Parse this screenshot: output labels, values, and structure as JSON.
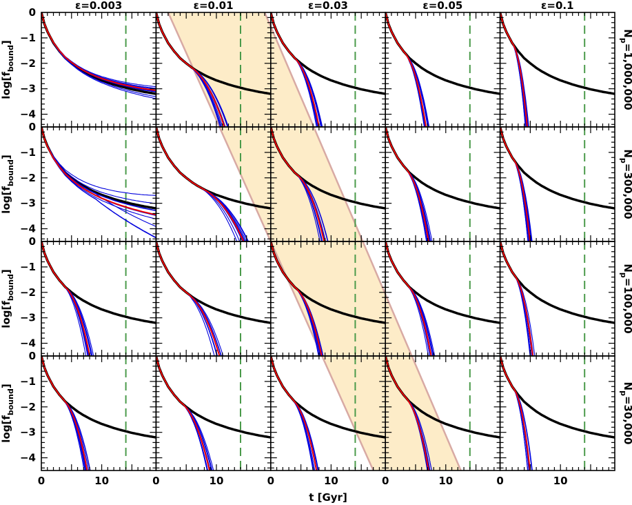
{
  "chart_data": {
    "type": "line",
    "description_layout": "4x5 panel grid",
    "xlabel": "t [Gyr]",
    "ylabel": "log[f_bound]",
    "ylabel_main": "log[f",
    "ylabel_sub": "bound",
    "ylabel_close": "]",
    "xlim": [
      0,
      19
    ],
    "ylim": [
      -4.5,
      0
    ],
    "x_ticks": [
      0,
      10
    ],
    "y_ticks": [
      0,
      -1,
      -2,
      -3,
      -4
    ],
    "vline_x": 14,
    "columns": [
      {
        "label": "ε=0.003",
        "eps": 0.003
      },
      {
        "label": "ε=0.01",
        "eps": 0.01
      },
      {
        "label": "ε=0.03",
        "eps": 0.03
      },
      {
        "label": "ε=0.05",
        "eps": 0.05
      },
      {
        "label": "ε=0.1",
        "eps": 0.1
      }
    ],
    "rows": [
      {
        "label_main": "N",
        "label_sub": "p",
        "label_value": "=1,000,000"
      },
      {
        "label_main": "N",
        "label_sub": "p",
        "label_value": "=300,000"
      },
      {
        "label_main": "N",
        "label_sub": "p",
        "label_value": "=100,000"
      },
      {
        "label_main": "N",
        "label_sub": "p",
        "label_value": "=30,000"
      }
    ],
    "colors": {
      "reference": "#000000",
      "runs": "#0000dd",
      "median": "#ee0000",
      "band_fill": "#fdecc8",
      "band_edge": "#d8aaa4",
      "vline": "#4a9a4a"
    },
    "reference_curve": {
      "t": [
        0,
        0.5,
        1,
        2,
        3,
        4,
        5,
        6,
        7,
        8,
        9,
        10,
        11,
        12,
        13,
        14,
        15,
        16,
        17,
        18,
        19
      ],
      "log_f": [
        0,
        -0.45,
        -0.75,
        -1.2,
        -1.53,
        -1.8,
        -2.0,
        -2.18,
        -2.33,
        -2.46,
        -2.57,
        -2.67,
        -2.75,
        -2.83,
        -2.9,
        -2.96,
        -3.02,
        -3.07,
        -3.12,
        -3.16,
        -3.2
      ]
    },
    "disruption_times": [
      [
        null,
        12.5,
        8.5,
        7.0,
        4.5
      ],
      [
        null,
        16.5,
        9.5,
        7.5,
        5.0
      ],
      [
        8.5,
        11.5,
        9.0,
        8.0,
        5.5
      ],
      [
        8.0,
        9.5,
        8.0,
        7.5,
        5.0
      ]
    ],
    "band": {
      "upper_edge": {
        "x_at_top": 2.0,
        "x_at_bottom_grid": 55.0
      },
      "lower_edge": {
        "x_at_top": 18.0,
        "x_at_bottom_grid": 69.5
      }
    }
  }
}
